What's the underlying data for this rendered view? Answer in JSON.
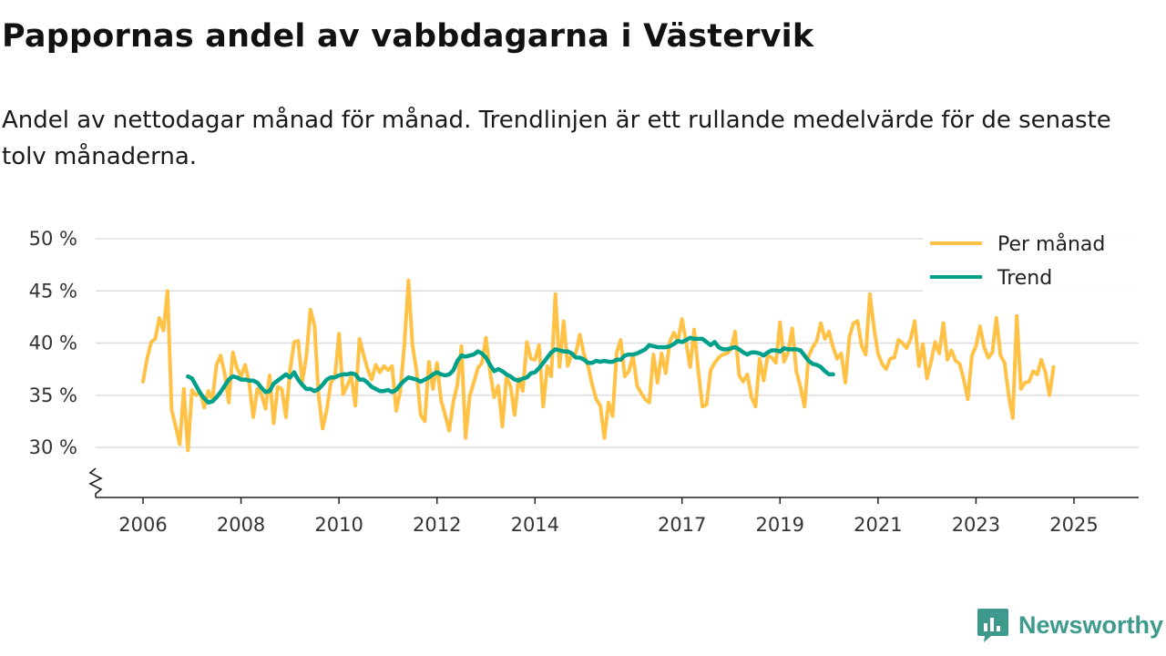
{
  "header": {
    "title": "Pappornas andel av vabbdagarna i Västervik",
    "subtitle": "Andel av nettodagar månad för månad. Trendlinjen är ett rullande medelvärde för de senaste tolv månaderna."
  },
  "brand": {
    "name": "Newsworthy",
    "icon": "newsworthy-logo-icon"
  },
  "colors": {
    "monthly": "#ffc247",
    "trend": "#00a08a",
    "grid": "#dddddd",
    "axis": "#222222"
  },
  "chart_data": {
    "type": "line",
    "title": "Pappornas andel av vabbdagarna i Västervik",
    "ylabel": "",
    "xlabel": "",
    "ylim": [
      25,
      50
    ],
    "xlim": [
      2005.6,
      2025.8
    ],
    "y_ticks": [
      {
        "value": 30,
        "label": "30 %"
      },
      {
        "value": 35,
        "label": "35 %"
      },
      {
        "value": 40,
        "label": "40 %"
      },
      {
        "value": 45,
        "label": "45 %"
      },
      {
        "value": 50,
        "label": "50 %"
      }
    ],
    "x_ticks": [
      {
        "value": 2006,
        "label": "2006"
      },
      {
        "value": 2008,
        "label": "2008"
      },
      {
        "value": 2010,
        "label": "2010"
      },
      {
        "value": 2012,
        "label": "2012"
      },
      {
        "value": 2014,
        "label": "2014"
      },
      {
        "value": 2017,
        "label": "2017"
      },
      {
        "value": 2019,
        "label": "2019"
      },
      {
        "value": 2021,
        "label": "2021"
      },
      {
        "value": 2023,
        "label": "2023"
      },
      {
        "value": 2025,
        "label": "2025"
      }
    ],
    "legend": {
      "placement": "top-right",
      "entries": [
        "Per månad",
        "Trend"
      ]
    },
    "series": [
      {
        "name": "Per månad",
        "start": 2006.0,
        "step": 0.0833333,
        "values": [
          36.3,
          38.5,
          40.1,
          40.4,
          42.4,
          41.2,
          45.0,
          33.6,
          32.0,
          30.3,
          35.6,
          29.7,
          35.5,
          35.0,
          35.3,
          33.8,
          35.4,
          34.6,
          37.9,
          38.8,
          37.1,
          34.3,
          39.1,
          37.6,
          36.8,
          37.9,
          36.2,
          32.9,
          35.6,
          35.1,
          33.7,
          36.9,
          32.3,
          35.8,
          35.6,
          32.9,
          37.4,
          40.1,
          40.2,
          36.3,
          38.7,
          43.2,
          41.7,
          35.0,
          31.8,
          33.6,
          36.2,
          36.8,
          40.9,
          35.1,
          35.9,
          36.8,
          34.0,
          40.4,
          38.9,
          37.5,
          36.5,
          37.9,
          37.2,
          37.8,
          37.4,
          37.8,
          33.5,
          35.4,
          39.8,
          46.0,
          39.8,
          37.3,
          33.1,
          32.5,
          38.2,
          35.6,
          38.1,
          34.5,
          33.1,
          31.6,
          34.4,
          36.0,
          39.7,
          30.9,
          34.9,
          36.2,
          37.6,
          38.1,
          40.5,
          37.2,
          34.8,
          35.9,
          32.0,
          36.7,
          35.9,
          33.1,
          36.6,
          35.4,
          40.1,
          38.5,
          38.4,
          39.8,
          33.9,
          37.8,
          36.8,
          44.7,
          37.7,
          42.1,
          37.8,
          38.9,
          39.0,
          40.8,
          38.9,
          37.8,
          36.0,
          34.6,
          34.0,
          30.9,
          34.3,
          33.0,
          39.1,
          40.3,
          36.8,
          37.3,
          38.8,
          35.9,
          35.2,
          34.6,
          34.3,
          38.9,
          36.2,
          39.0,
          37.1,
          40.1,
          41.0,
          40.2,
          42.3,
          40.1,
          37.7,
          41.3,
          37.3,
          33.9,
          34.1,
          37.4,
          38.1,
          38.6,
          38.9,
          39.0,
          39.4,
          41.1,
          36.9,
          36.3,
          37.0,
          34.8,
          33.9,
          38.5,
          36.4,
          38.8,
          38.6,
          38.1,
          42.0,
          38.2,
          39.1,
          41.4,
          37.3,
          35.8,
          33.9,
          38.7,
          39.6,
          40.2,
          41.9,
          40.4,
          41.1,
          39.6,
          38.5,
          39.0,
          36.2,
          40.6,
          41.9,
          42.1,
          39.7,
          38.9,
          44.7,
          41.5,
          39.0,
          38.0,
          37.5,
          38.5,
          38.6,
          40.3,
          40.0,
          39.5,
          40.4,
          42.1,
          37.8,
          39.9,
          36.6,
          38.2,
          40.1,
          39.0,
          41.9,
          38.4,
          39.3,
          38.3,
          38.0,
          36.5,
          34.6,
          38.8,
          39.7,
          41.6,
          39.6,
          38.6,
          39.1,
          42.4,
          38.8,
          38.1,
          35.0,
          32.8,
          42.6,
          35.6,
          36.2,
          36.3,
          37.3,
          37.0,
          38.4,
          37.2,
          35.0,
          37.7
        ]
      },
      {
        "name": "Trend",
        "start": 2006.9167,
        "step": 0.0833333,
        "values": [
          36.8,
          36.6,
          35.9,
          35.2,
          34.7,
          34.3,
          34.4,
          34.8,
          35.3,
          35.9,
          36.5,
          36.8,
          36.7,
          36.5,
          36.5,
          36.4,
          36.4,
          36.2,
          35.7,
          35.3,
          35.4,
          36.1,
          36.4,
          36.7,
          37.0,
          36.7,
          37.2,
          36.5,
          36.0,
          35.6,
          35.6,
          35.4,
          35.6,
          36.0,
          36.5,
          36.7,
          36.7,
          36.9,
          37.0,
          37.0,
          37.1,
          37.0,
          36.5,
          36.5,
          36.2,
          35.8,
          35.6,
          35.4,
          35.4,
          35.5,
          35.3,
          35.5,
          36.0,
          36.4,
          36.7,
          36.6,
          36.5,
          36.3,
          36.5,
          36.7,
          37.0,
          37.2,
          37.0,
          36.9,
          37.0,
          37.4,
          38.3,
          38.8,
          38.7,
          38.8,
          38.9,
          39.2,
          39.0,
          38.6,
          37.9,
          37.3,
          37.5,
          37.3,
          37.0,
          36.8,
          36.5,
          36.4,
          36.6,
          36.7,
          37.1,
          37.2,
          37.6,
          38.1,
          38.6,
          39.1,
          39.4,
          39.3,
          39.2,
          39.2,
          39.0,
          38.6,
          38.6,
          38.4,
          38.1,
          38.1,
          38.3,
          38.2,
          38.3,
          38.2,
          38.2,
          38.4,
          38.4,
          38.8,
          38.9,
          38.9,
          39.0,
          39.2,
          39.4,
          39.8,
          39.7,
          39.6,
          39.6,
          39.6,
          39.7,
          39.9,
          40.2,
          40.1,
          40.3,
          40.5,
          40.4,
          40.4,
          40.4,
          40.1,
          39.8,
          40.1,
          39.6,
          39.4,
          39.4,
          39.5,
          39.6,
          39.4,
          39.1,
          38.9,
          39.1,
          39.1,
          39.0,
          38.8,
          39.1,
          39.3,
          39.3,
          39.2,
          39.5,
          39.4,
          39.4,
          39.4,
          39.3,
          38.8,
          38.3,
          38.0,
          37.9,
          37.7,
          37.3,
          37.0,
          37.0
        ]
      }
    ]
  }
}
